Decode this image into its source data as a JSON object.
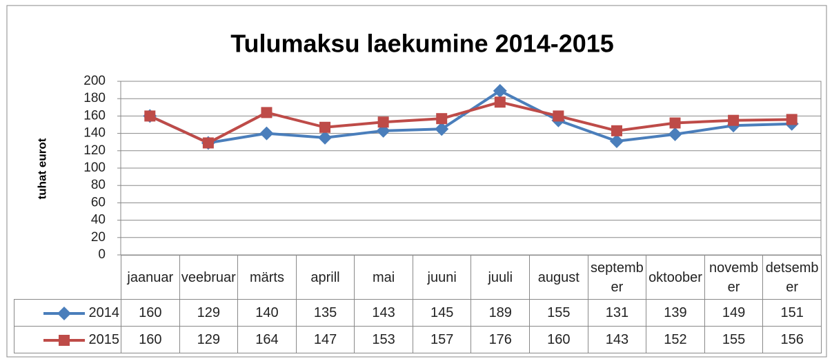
{
  "chart_data": {
    "type": "line",
    "title": "Tulumaksu laekumine 2014-2015",
    "ylabel": "tuhat eurot",
    "categories": [
      "jaanuar",
      "veebruar",
      "märts",
      "aprill",
      "mai",
      "juuni",
      "juuli",
      "august",
      "september",
      "oktoober",
      "november",
      "detsember"
    ],
    "series": [
      {
        "name": "2014",
        "color": "#4a7ebb",
        "marker": "diamond",
        "values": [
          160,
          129,
          140,
          135,
          143,
          145,
          189,
          155,
          131,
          139,
          149,
          151
        ]
      },
      {
        "name": "2015",
        "color": "#be4b48",
        "marker": "square",
        "values": [
          160,
          129,
          164,
          147,
          153,
          157,
          176,
          160,
          143,
          152,
          155,
          156
        ]
      }
    ],
    "ylim": [
      0,
      200
    ],
    "yticks": [
      0,
      20,
      40,
      60,
      80,
      100,
      120,
      140,
      160,
      180,
      200
    ],
    "grid": true,
    "data_table": true
  }
}
